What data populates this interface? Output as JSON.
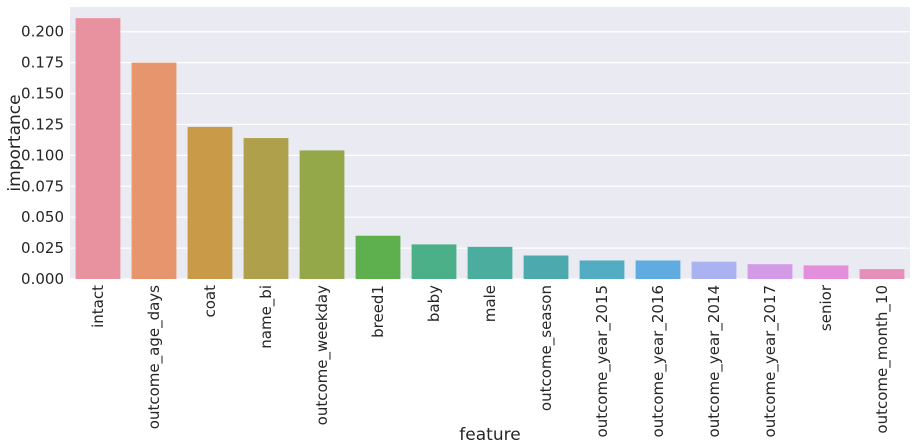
{
  "chart_data": {
    "type": "bar",
    "title": "",
    "xlabel": "feature",
    "ylabel": "importance",
    "ylim": [
      0,
      0.22
    ],
    "yticks": [
      "0.000",
      "0.025",
      "0.050",
      "0.075",
      "0.100",
      "0.125",
      "0.150",
      "0.175",
      "0.200"
    ],
    "grid": true,
    "background": "#eaeaf2",
    "categories": [
      "intact",
      "outcome_age_days",
      "coat",
      "name_bi",
      "outcome_weekday",
      "breed1",
      "baby",
      "male",
      "outcome_season",
      "outcome_year_2015",
      "outcome_year_2016",
      "outcome_year_2014",
      "outcome_year_2017",
      "senior",
      "outcome_month_10"
    ],
    "values": [
      0.211,
      0.175,
      0.123,
      0.114,
      0.104,
      0.035,
      0.028,
      0.026,
      0.019,
      0.015,
      0.015,
      0.014,
      0.012,
      0.011,
      0.008
    ],
    "colors": [
      "#e8929f",
      "#e6956c",
      "#c99a48",
      "#afa04b",
      "#94a84a",
      "#5db04d",
      "#4bb088",
      "#4bad9e",
      "#4ca9ad",
      "#52adc3",
      "#60ace0",
      "#aab2ef",
      "#d39ae8",
      "#e38fdc",
      "#e590b8"
    ]
  }
}
